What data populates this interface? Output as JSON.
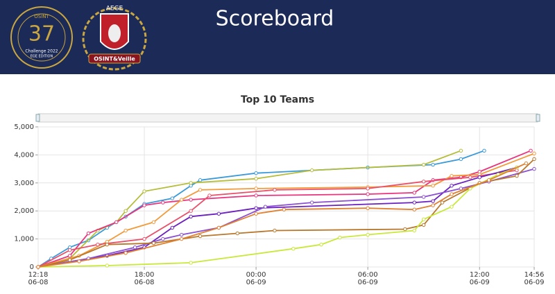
{
  "header": {
    "title": "Scoreboard",
    "logo_left": {
      "top": "OSINT",
      "number": "37",
      "caption": "Challenge 2022",
      "edition": "EGE EDITION"
    },
    "logo_right": {
      "top": "AEGE",
      "banner": "OSINT&Veille"
    }
  },
  "chart_data": {
    "type": "line",
    "title": "Top 10 Teams",
    "xlim": [
      "06-08 12:18",
      "06-09 14:56"
    ],
    "xticks": [
      {
        "value": "06-08 12:18",
        "label": [
          "12:18",
          "06-08"
        ]
      },
      {
        "value": "06-08 18:00",
        "label": [
          "18:00",
          "06-08"
        ]
      },
      {
        "value": "06-09 00:00",
        "label": [
          "00:00",
          "06-09"
        ]
      },
      {
        "value": "06-09 06:00",
        "label": [
          "06:00",
          "06-09"
        ]
      },
      {
        "value": "06-09 12:00",
        "label": [
          "12:00",
          "06-09"
        ]
      },
      {
        "value": "06-09 14:56",
        "label": [
          "14:56",
          "06-09"
        ]
      }
    ],
    "ylim": [
      0,
      5000
    ],
    "yticks": [
      0,
      {
        "value": 1000,
        "label": "1,000"
      },
      {
        "value": 2000,
        "label": "2,000"
      },
      {
        "value": 3000,
        "label": "3,000"
      },
      {
        "value": 4000,
        "label": "4,000"
      },
      {
        "value": 5000,
        "label": "5,000"
      }
    ],
    "grid": true,
    "series": [
      {
        "color": "#3a9ad9",
        "x": [
          "06-08 12:18",
          "06-08 13:00",
          "06-08 14:00",
          "06-08 15:00",
          "06-08 16:00",
          "06-08 17:00",
          "06-08 18:00",
          "06-08 19:30",
          "06-08 20:30",
          "06-08 21:00",
          "06-09 00:00",
          "06-09 06:00",
          "06-09 09:30",
          "06-09 11:00",
          "06-09 12:15"
        ],
        "values": [
          0,
          300,
          700,
          950,
          1400,
          1800,
          2250,
          2450,
          2900,
          3100,
          3350,
          3550,
          3650,
          3850,
          4150
        ]
      },
      {
        "color": "#b5bd3a",
        "x": [
          "06-08 12:18",
          "06-08 14:00",
          "06-08 15:30",
          "06-08 16:30",
          "06-08 17:00",
          "06-08 18:00",
          "06-08 20:30",
          "06-09 00:00",
          "06-09 03:00",
          "06-09 09:00",
          "06-09 11:00"
        ],
        "values": [
          0,
          300,
          1300,
          1600,
          2000,
          2700,
          3000,
          3150,
          3450,
          3650,
          4150
        ]
      },
      {
        "color": "#e8337d",
        "x": [
          "06-08 12:18",
          "06-08 14:00",
          "06-08 15:00",
          "06-08 16:30",
          "06-08 18:00",
          "06-08 19:00",
          "06-08 20:30",
          "06-09 00:00",
          "06-09 06:00",
          "06-09 08:30",
          "06-09 09:30",
          "06-09 11:00",
          "06-09 12:00",
          "06-09 14:45"
        ],
        "values": [
          0,
          400,
          1200,
          1600,
          2200,
          2300,
          2400,
          2550,
          2600,
          2650,
          3100,
          3200,
          3400,
          4150
        ]
      },
      {
        "color": "#f29a3a",
        "x": [
          "06-08 12:18",
          "06-08 14:30",
          "06-08 16:00",
          "06-08 17:00",
          "06-08 18:30",
          "06-08 20:00",
          "06-08 21:00",
          "06-09 00:00",
          "06-09 06:00",
          "06-09 09:30",
          "06-09 10:30",
          "06-09 12:00",
          "06-09 14:56"
        ],
        "values": [
          0,
          400,
          900,
          1300,
          1600,
          2400,
          2750,
          2800,
          2850,
          2900,
          3250,
          3300,
          4050
        ]
      },
      {
        "color": "#e8506a",
        "x": [
          "06-08 12:18",
          "06-08 14:00",
          "06-08 15:30",
          "06-08 18:00",
          "06-08 20:30",
          "06-08 21:30",
          "06-09 01:00",
          "06-09 06:00",
          "06-09 09:00",
          "06-09 11:30",
          "06-09 14:00"
        ],
        "values": [
          0,
          600,
          800,
          1000,
          2000,
          2550,
          2750,
          2800,
          3050,
          3200,
          3450
        ]
      },
      {
        "color": "#6a1fbf",
        "x": [
          "06-08 12:18",
          "06-08 16:00",
          "06-08 18:00",
          "06-08 19:30",
          "06-08 20:30",
          "06-08 22:00",
          "06-09 00:00",
          "06-09 08:30",
          "06-09 09:30",
          "06-09 10:30",
          "06-09 12:00",
          "06-09 14:00"
        ],
        "values": [
          0,
          400,
          700,
          1400,
          1800,
          1900,
          2100,
          2300,
          2350,
          2900,
          3200,
          3550
        ]
      },
      {
        "color": "#8a4fd0",
        "x": [
          "06-08 12:18",
          "06-08 15:00",
          "06-08 17:30",
          "06-08 19:00",
          "06-08 20:00",
          "06-08 22:00",
          "06-09 00:30",
          "06-09 03:00",
          "06-09 09:00",
          "06-09 11:00",
          "06-09 12:30",
          "06-09 14:56"
        ],
        "values": [
          0,
          300,
          700,
          1000,
          1150,
          1400,
          2150,
          2300,
          2500,
          2800,
          3050,
          3500
        ]
      },
      {
        "color": "#b8772a",
        "x": [
          "06-08 12:18",
          "06-08 14:00",
          "06-08 16:00",
          "06-08 18:30",
          "06-08 21:00",
          "06-08 23:00",
          "06-09 01:00",
          "06-09 08:00",
          "06-09 09:00",
          "06-09 10:00",
          "06-09 12:00",
          "06-09 14:00",
          "06-09 14:56"
        ],
        "values": [
          0,
          250,
          800,
          850,
          1100,
          1200,
          1300,
          1350,
          1500,
          2300,
          3000,
          3250,
          3850
        ]
      },
      {
        "color": "#c8e83a",
        "x": [
          "06-08 12:18",
          "06-08 16:00",
          "06-08 20:30",
          "06-09 02:00",
          "06-09 03:30",
          "06-09 04:30",
          "06-09 06:00",
          "06-09 08:30",
          "06-09 09:00",
          "06-09 10:30",
          "06-09 11:30",
          "06-09 13:00",
          "06-09 14:00"
        ],
        "values": [
          0,
          50,
          150,
          650,
          800,
          1050,
          1150,
          1300,
          1700,
          2150,
          2800,
          3300,
          3550
        ]
      },
      {
        "color": "#e08030",
        "x": [
          "06-08 12:18",
          "06-08 14:30",
          "06-08 17:00",
          "06-08 20:00",
          "06-08 22:00",
          "06-09 00:00",
          "06-09 01:30",
          "06-09 06:00",
          "06-09 08:30",
          "06-09 09:30",
          "06-09 10:30",
          "06-09 12:30",
          "06-09 14:30"
        ],
        "values": [
          0,
          200,
          500,
          1000,
          1400,
          1900,
          2050,
          2100,
          2050,
          2200,
          2600,
          3100,
          3700
        ]
      }
    ]
  }
}
